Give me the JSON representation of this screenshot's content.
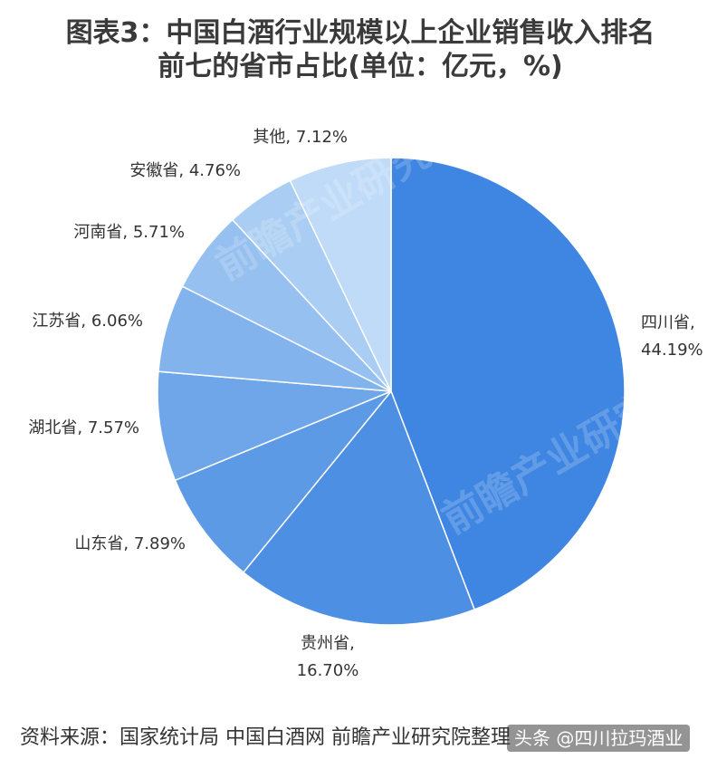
{
  "header": {
    "title_line1": "图表3：中国白酒行业规模以上企业销售收入排名",
    "title_line2": "前七的省市占比(单位：亿元，%)"
  },
  "chart_data": {
    "type": "pie",
    "title": "图表3：中国白酒行业规模以上企业销售收入排名前七的省市占比(单位：亿元，%)",
    "unit": "%",
    "start_angle_deg": 0,
    "direction": "clockwise",
    "slices": [
      {
        "label": "四川省",
        "value": 44.19,
        "display": "44.19%",
        "color": "#3f86e2"
      },
      {
        "label": "贵州省",
        "value": 16.7,
        "display": "16.70%",
        "color": "#4d8fe3"
      },
      {
        "label": "山东省",
        "value": 7.89,
        "display": "7.89%",
        "color": "#5d9ae6"
      },
      {
        "label": "湖北省",
        "value": 7.57,
        "display": "7.57%",
        "color": "#6fa6ea"
      },
      {
        "label": "江苏省",
        "value": 6.06,
        "display": "6.06%",
        "color": "#82b3ed"
      },
      {
        "label": "河南省",
        "value": 5.71,
        "display": "5.71%",
        "color": "#96c0f0"
      },
      {
        "label": "安徽省",
        "value": 4.76,
        "display": "4.76%",
        "color": "#aacdf3"
      },
      {
        "label": "其他",
        "value": 7.12,
        "display": "7.12%",
        "color": "#c0dbf8"
      }
    ],
    "legend": "none"
  },
  "footer": {
    "source": "资料来源：国家统计局 中国白酒网 前瞻产业研究院整理",
    "credit": "头条 @四川拉玛酒业"
  },
  "watermark": {
    "text": "前瞻产业研究院"
  }
}
